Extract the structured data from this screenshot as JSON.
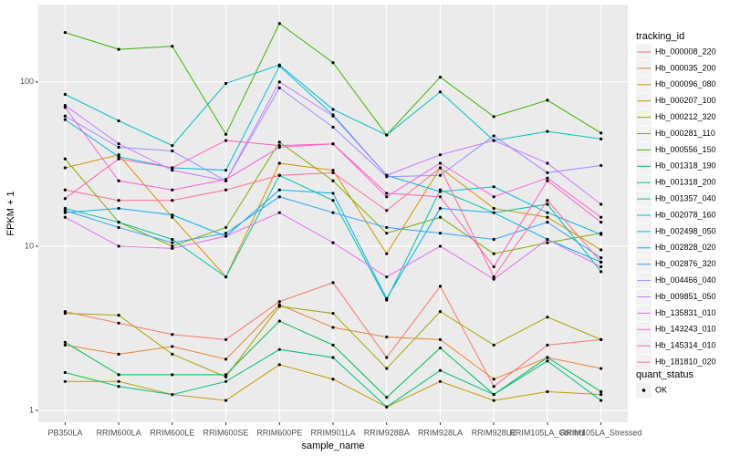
{
  "chart_data": {
    "type": "line",
    "x_label": "sample_name",
    "y_label": "FPKM + 1",
    "categories": [
      "PB350LA",
      "RRIM600LA",
      "RRIM600LE",
      "RRIM600SE",
      "RRIM600PE",
      "RRIM901LA",
      "RRIM928BA",
      "RRIM928LA",
      "RRIM928LE",
      "RRIM105LA_Control",
      "RRIM105LA_Stressed"
    ],
    "log_scale": true,
    "grid": true,
    "ylim": [
      0.847,
      296
    ],
    "yticks": [
      1,
      10,
      100
    ],
    "legend_title": "tracking_id",
    "legend_position": "right",
    "point_color": "#000000",
    "shape_legend": {
      "title": "quant_status",
      "entries": [
        "OK"
      ]
    },
    "series": [
      {
        "name": "Hb_000008_220",
        "color": "#F8766D",
        "values": [
          4.0,
          3.4,
          2.9,
          2.7,
          4.6,
          6.0,
          2.1,
          5.7,
          1.4,
          2.5,
          2.7
        ]
      },
      {
        "name": "Hb_000035_200",
        "color": "#EA8331",
        "values": [
          2.5,
          2.2,
          2.45,
          2.05,
          4.4,
          3.2,
          2.8,
          2.7,
          1.55,
          2.1,
          1.8
        ]
      },
      {
        "name": "Hb_000096_080",
        "color": "#D89000",
        "values": [
          30,
          36,
          15,
          6.5,
          32,
          29,
          9,
          30,
          17,
          15,
          9.5
        ]
      },
      {
        "name": "Hb_000207_100",
        "color": "#C09B00",
        "values": [
          1.5,
          1.5,
          1.25,
          1.15,
          1.9,
          1.55,
          1.05,
          1.5,
          1.15,
          1.3,
          1.25
        ]
      },
      {
        "name": "Hb_000212_320",
        "color": "#A3A500",
        "values": [
          3.9,
          3.8,
          2.2,
          1.6,
          4.3,
          3.9,
          1.8,
          4.0,
          2.5,
          3.7,
          2.7
        ]
      },
      {
        "name": "Hb_000281_110",
        "color": "#7CAE00",
        "values": [
          34,
          14,
          10,
          13,
          43,
          25,
          12,
          15,
          9,
          10.5,
          12
        ]
      },
      {
        "name": "Hb_000556_150",
        "color": "#39B600",
        "values": [
          200,
          158,
          165,
          48,
          227,
          131,
          47.6,
          107,
          61.5,
          77.4,
          48.9
        ]
      },
      {
        "name": "Hb_001318_190",
        "color": "#00BB4E",
        "values": [
          2.6,
          1.65,
          1.65,
          1.65,
          3.5,
          2.5,
          1.2,
          2.4,
          1.25,
          2.1,
          1.3
        ]
      },
      {
        "name": "Hb_001318_200",
        "color": "#00BF7D",
        "values": [
          1.7,
          1.4,
          1.25,
          1.5,
          2.35,
          2.1,
          1.05,
          1.75,
          1.25,
          2.0,
          1.15
        ]
      },
      {
        "name": "Hb_001357_040",
        "color": "#00C1A3",
        "values": [
          17,
          14,
          11,
          6.5,
          27,
          19,
          4.7,
          22,
          16,
          18,
          7
        ]
      },
      {
        "name": "Hb_002078_160",
        "color": "#00BFC4",
        "values": [
          84,
          58,
          41,
          98,
          127,
          68,
          47.5,
          87,
          44,
          50,
          45
        ]
      },
      {
        "name": "Hb_002498_050",
        "color": "#00BAE0",
        "values": [
          59,
          35,
          30,
          29,
          125,
          63,
          27,
          21.5,
          23,
          16,
          11.8
        ]
      },
      {
        "name": "Hb_002828_020",
        "color": "#00B0F6",
        "values": [
          16,
          17,
          15.5,
          11.5,
          22,
          21,
          4.8,
          17,
          16,
          11,
          8
        ]
      },
      {
        "name": "Hb_002876_320",
        "color": "#35A2FF",
        "values": [
          16.5,
          13,
          10.5,
          12,
          20,
          16,
          13,
          12,
          11,
          14,
          8.5
        ]
      },
      {
        "name": "Hb_004466_040",
        "color": "#9590FF",
        "values": [
          62,
          40,
          38,
          25,
          92,
          53,
          26.5,
          27,
          47,
          28,
          31
        ]
      },
      {
        "name": "Hb_009851_050",
        "color": "#C77CFF",
        "values": [
          72,
          42,
          29,
          25,
          100,
          62,
          27,
          36,
          44,
          32,
          18
        ]
      },
      {
        "name": "Hb_135831_010",
        "color": "#E76BF3",
        "values": [
          15,
          10,
          9.7,
          11.5,
          16,
          10.5,
          6.5,
          10,
          6.3,
          11,
          7.5
        ]
      },
      {
        "name": "Hb_143243_010",
        "color": "#FA62DB",
        "values": [
          70,
          25,
          22,
          25.5,
          40,
          42,
          20,
          32,
          20,
          26,
          15
        ]
      },
      {
        "name": "Hb_145314_010",
        "color": "#FF62BC",
        "values": [
          19.5,
          34,
          30,
          44,
          41,
          42,
          21,
          20,
          7.5,
          25,
          14
        ]
      },
      {
        "name": "Hb_181810_020",
        "color": "#FF6C91",
        "values": [
          22,
          19,
          19,
          22,
          27,
          28,
          16.5,
          30,
          6.5,
          19,
          8
        ]
      }
    ]
  }
}
